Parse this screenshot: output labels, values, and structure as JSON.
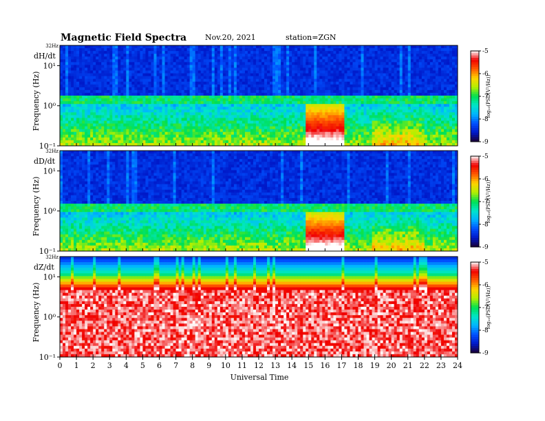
{
  "header": {
    "title": "Magnetic  Field  Spectra",
    "date": "Nov.20, 2021",
    "station": "station=ZGN"
  },
  "colors": {
    "colormap": [
      "#1a0033",
      "#0018c8",
      "#0050ff",
      "#00b4ff",
      "#00e6c8",
      "#00e050",
      "#b4f000",
      "#ffd200",
      "#ff5a00",
      "#f00000",
      "#ffffff"
    ],
    "frame": "#000000"
  },
  "chart_data": [
    {
      "type": "heatmap",
      "panel_label": "dH/dt",
      "ylabel": "Frequency  (Hz)",
      "top_label": "32Hz",
      "yticks": [
        "10¹",
        "10⁰",
        "10⁻¹"
      ],
      "colorbar": {
        "title": "log₁₀(PSD(V²/Hz))",
        "ticks": [
          "-5",
          "-6",
          "-7",
          "-8",
          "-9"
        ],
        "range": [
          -9,
          -5
        ]
      },
      "x": [
        0,
        24
      ],
      "y_range_hz": [
        0.1,
        32
      ],
      "noise_band_hz": 1.5,
      "note_values": "log10 PSD approx -9 at high freq, -7 near 1-2 Hz band, -5 at low freq bursts 15-17 UT"
    },
    {
      "type": "heatmap",
      "panel_label": "dD/dt",
      "ylabel": "Frequency  (Hz)",
      "top_label": "32Hz",
      "yticks": [
        "10¹",
        "10⁰",
        "10⁻¹"
      ],
      "colorbar": {
        "title": "log₁₀(PSD(V²/Hz))",
        "ticks": [
          "-5",
          "-6",
          "-7",
          "-8",
          "-9"
        ],
        "range": [
          -9,
          -5
        ]
      },
      "x": [
        0,
        24
      ],
      "y_range_hz": [
        0.1,
        32
      ],
      "noise_band_hz": 1.2
    },
    {
      "type": "heatmap",
      "panel_label": "dZ/dt",
      "ylabel": "Frequency  (Hz)",
      "top_label": "32Hz",
      "yticks": [
        "10¹",
        "10⁰",
        "10⁻¹"
      ],
      "colorbar": {
        "title": "log₁₀(PSD(V²/Hz))",
        "ticks": [
          "-5",
          "-6",
          "-7",
          "-8",
          "-9"
        ],
        "range": [
          -9,
          -5
        ]
      },
      "x": [
        0,
        24
      ],
      "y_range_hz": [
        0.1,
        32
      ],
      "noise_band_hz": 5
    }
  ],
  "xaxis": {
    "label": "Universal  Time",
    "ticks": [
      "0",
      "1",
      "2",
      "3",
      "4",
      "5",
      "6",
      "7",
      "8",
      "9",
      "10",
      "11",
      "12",
      "13",
      "14",
      "15",
      "16",
      "17",
      "18",
      "19",
      "20",
      "21",
      "22",
      "23",
      "24"
    ],
    "range": [
      0,
      24
    ]
  }
}
